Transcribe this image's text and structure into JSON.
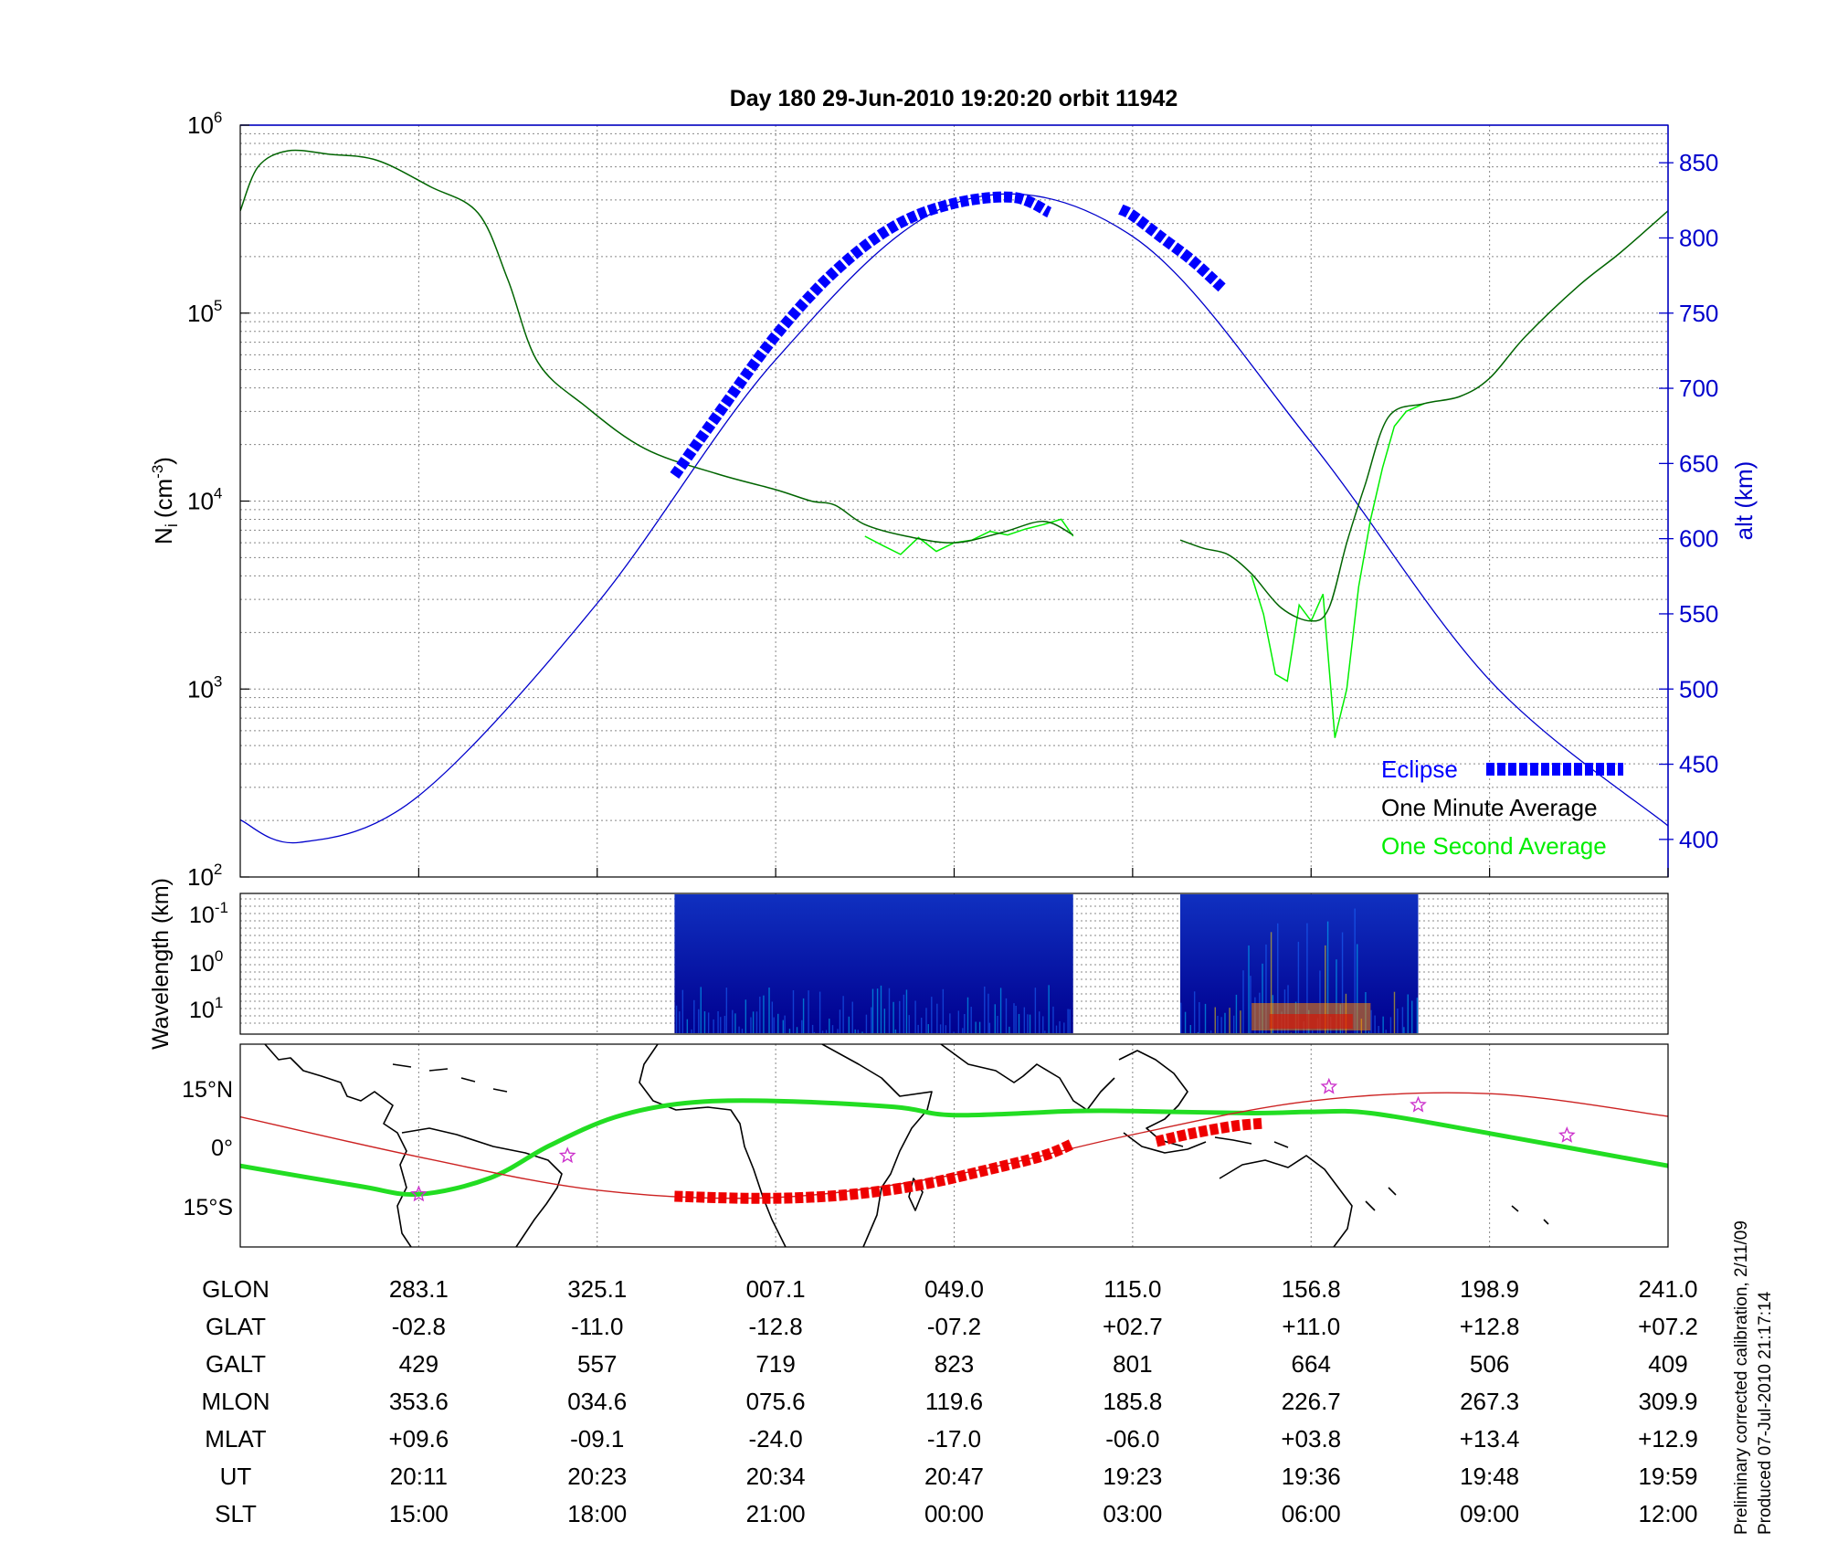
{
  "colors": {
    "eclipse": "#0000ff",
    "altitude": "#0000cc",
    "one_minute": "#006400",
    "one_second": "#00ee00",
    "magnetic_track": "#22dd22",
    "geo_track": "#cc2222",
    "eclipse_track": "#ee0000",
    "star_marker": "#cc33cc",
    "grid": "#888888"
  },
  "chart_data": [
    {
      "type": "line",
      "title": "Day 180  29-Jun-2010 19:20:20   orbit 11942",
      "ylabel": "N",
      "ylabel_sub": "i",
      "ylabel_unit": "(cm",
      "ylabel_exp": "-3",
      "ylabel_close": ")",
      "yscale": "log",
      "ylim": [
        100,
        1000000
      ],
      "y_ticks": [
        {
          "base": "10",
          "exp": "2",
          "value": 100
        },
        {
          "base": "10",
          "exp": "3",
          "value": 1000
        },
        {
          "base": "10",
          "exp": "4",
          "value": 10000
        },
        {
          "base": "10",
          "exp": "5",
          "value": 100000
        },
        {
          "base": "10",
          "exp": "6",
          "value": 1000000
        }
      ],
      "y2label": "alt (km)",
      "y2lim": [
        375,
        875
      ],
      "y2_ticks": [
        "400",
        "450",
        "500",
        "550",
        "600",
        "650",
        "700",
        "750",
        "800",
        "850"
      ],
      "x_ticks_slt_hours": [
        15,
        18,
        21,
        24,
        27,
        30,
        33,
        36
      ],
      "xlim_slt_hours": [
        12,
        36
      ],
      "grid": true,
      "legend_position": "bottom-right",
      "legend": [
        {
          "label": "Eclipse",
          "color": "#0000ff",
          "swatch": "dashes"
        },
        {
          "label": "One Minute Average",
          "color": "#000000",
          "swatch": "none"
        },
        {
          "label": "One Second Average",
          "color": "#00ee00",
          "swatch": "none"
        }
      ],
      "series": [
        {
          "name": "alt (km)",
          "axis": "right",
          "x_slt_hours": [
            12.0,
            13.0,
            15.0,
            18.0,
            21.0,
            24.0,
            27.0,
            30.0,
            33.0,
            36.0
          ],
          "values": [
            413,
            398,
            429,
            557,
            719,
            823,
            801,
            664,
            506,
            409
          ]
        },
        {
          "name": "One Minute Average",
          "axis": "left",
          "segments": [
            {
              "x_slt_hours": [
                12.0,
                12.3,
                12.8,
                13.5,
                14.3,
                15.2,
                16.0,
                16.5,
                17.0,
                17.8,
                18.8,
                20.0,
                21.0,
                21.6,
                22.0,
                22.5,
                23.2,
                24.0,
                24.8,
                25.5,
                26.0
              ],
              "values": [
                350000,
                600000,
                730000,
                700000,
                650000,
                470000,
                340000,
                150000,
                55000,
                32000,
                19000,
                14000,
                11500,
                10000,
                9500,
                7500,
                6500,
                6000,
                6800,
                7800,
                6600
              ]
            },
            {
              "x_slt_hours": [
                27.8,
                28.2,
                28.6,
                29.0,
                29.5,
                30.0,
                30.3,
                30.6,
                30.9,
                31.3,
                31.9,
                32.5,
                33.0,
                33.6,
                34.5,
                35.2,
                36.0
              ],
              "values": [
                6200,
                5600,
                5200,
                4100,
                2700,
                2300,
                2700,
                6000,
                12000,
                28000,
                33000,
                36000,
                45000,
                75000,
                140000,
                210000,
                350000
              ]
            }
          ]
        },
        {
          "name": "One Second Average",
          "axis": "left",
          "segments": [
            {
              "x_slt_hours": [
                22.5,
                22.8,
                23.1,
                23.4,
                23.7,
                24.0,
                24.3,
                24.6,
                24.9,
                25.2,
                25.5,
                25.8,
                26.0
              ],
              "values": [
                6500,
                5800,
                5200,
                6400,
                5400,
                6000,
                6200,
                6900,
                6600,
                7100,
                7500,
                8000,
                6500
              ]
            },
            {
              "x_slt_hours": [
                29.0,
                29.2,
                29.4,
                29.6,
                29.8,
                30.0,
                30.2,
                30.4,
                30.6,
                30.8,
                31.0,
                31.2,
                31.4,
                31.6,
                31.9
              ],
              "values": [
                4000,
                2500,
                1200,
                1100,
                2800,
                2300,
                3200,
                550,
                1000,
                3500,
                8000,
                15000,
                25000,
                30000,
                33000
              ]
            }
          ]
        },
        {
          "name": "Eclipse",
          "axis": "right",
          "style": "dashes",
          "segments": [
            {
              "x_slt_hours": [
                19.3,
                20.0,
                21.0,
                22.0,
                23.0,
                24.0,
                25.0,
                25.6
              ],
              "values": [
                642,
                681,
                735,
                778,
                808,
                823,
                827,
                817
              ]
            },
            {
              "x_slt_hours": [
                26.8,
                27.0,
                27.5,
                28.0,
                28.5
              ],
              "values": [
                819,
                815,
                800,
                785,
                767
              ]
            }
          ]
        }
      ]
    },
    {
      "type": "heatmap",
      "ylabel": "Wavelength (km)",
      "yscale": "log",
      "y_ticks": [
        {
          "base": "10",
          "exp": "-1"
        },
        {
          "base": "10",
          "exp": "0"
        },
        {
          "base": "10",
          "exp": "1"
        }
      ],
      "blocks_slt_hours": [
        [
          19.3,
          26.0
        ],
        [
          27.8,
          31.8
        ]
      ],
      "colormap": "jet"
    },
    {
      "type": "scatter",
      "y_ticks": [
        "15°N",
        "0°",
        "15°S"
      ],
      "ylim": [
        -25,
        25
      ],
      "magnetic_equator": {
        "x_slt_hours": [
          12.0,
          14.0,
          15.0,
          16.2,
          17.2,
          18.3,
          19.5,
          21.0,
          23.0,
          24.0,
          26.0,
          27.0,
          29.0,
          30.0,
          31.0,
          33.0,
          36.0
        ],
        "lat": [
          -5,
          -10,
          -12,
          -8,
          0,
          7,
          10.5,
          11,
          9.5,
          7.5,
          8.5,
          8.5,
          8,
          8.3,
          8,
          3,
          -5
        ]
      },
      "geo_track": {
        "x_slt_hours": [
          12.0,
          15.0,
          18.0,
          21.0,
          24.0,
          27.0,
          30.0,
          33.0,
          36.0
        ],
        "lat": [
          7.1,
          -2.8,
          -11.0,
          -12.8,
          -7.2,
          2.7,
          11.0,
          12.8,
          7.2
        ]
      },
      "eclipse_track": [
        {
          "x_slt_hours": [
            19.3,
            20.5,
            21.5,
            22.5,
            23.5,
            24.5,
            25.5,
            26.0
          ],
          "lat": [
            -12.5,
            -13,
            -12.8,
            -11.7,
            -9.5,
            -6.2,
            -2.5,
            0.5
          ]
        },
        {
          "x_slt_hours": [
            27.4,
            28.0,
            28.7,
            29.2
          ],
          "lat": [
            1.0,
            3.0,
            4.8,
            5.5
          ]
        }
      ],
      "star_markers": {
        "x_slt_hours": [
          15.0,
          17.5,
          30.3,
          31.8,
          34.3
        ],
        "lat": [
          -12,
          -2.5,
          14.5,
          10,
          2.5
        ]
      }
    }
  ],
  "table": {
    "row_labels": [
      "GLON",
      "GLAT",
      "GALT",
      "MLON",
      "MLAT",
      "UT",
      "SLT"
    ],
    "columns": [
      [
        "283.1",
        "-02.8",
        "429",
        "353.6",
        "+09.6",
        "20:11",
        "15:00"
      ],
      [
        "325.1",
        "-11.0",
        "557",
        "034.6",
        "-09.1",
        "20:23",
        "18:00"
      ],
      [
        "007.1",
        "-12.8",
        "719",
        "075.6",
        "-24.0",
        "20:34",
        "21:00"
      ],
      [
        "049.0",
        "-07.2",
        "823",
        "119.6",
        "-17.0",
        "20:47",
        "00:00"
      ],
      [
        "115.0",
        "+02.7",
        "801",
        "185.8",
        "-06.0",
        "19:23",
        "03:00"
      ],
      [
        "156.8",
        "+11.0",
        "664",
        "226.7",
        "+03.8",
        "19:36",
        "06:00"
      ],
      [
        "198.9",
        "+12.8",
        "506",
        "267.3",
        "+13.4",
        "19:48",
        "09:00"
      ],
      [
        "241.0",
        "+07.2",
        "409",
        "309.9",
        "+12.9",
        "19:59",
        "12:00"
      ]
    ]
  },
  "footnote": {
    "line1": "Preliminary corrected calibration, 2/11/09",
    "line2": "Produced 07-Jul-2010 21:17:14"
  }
}
